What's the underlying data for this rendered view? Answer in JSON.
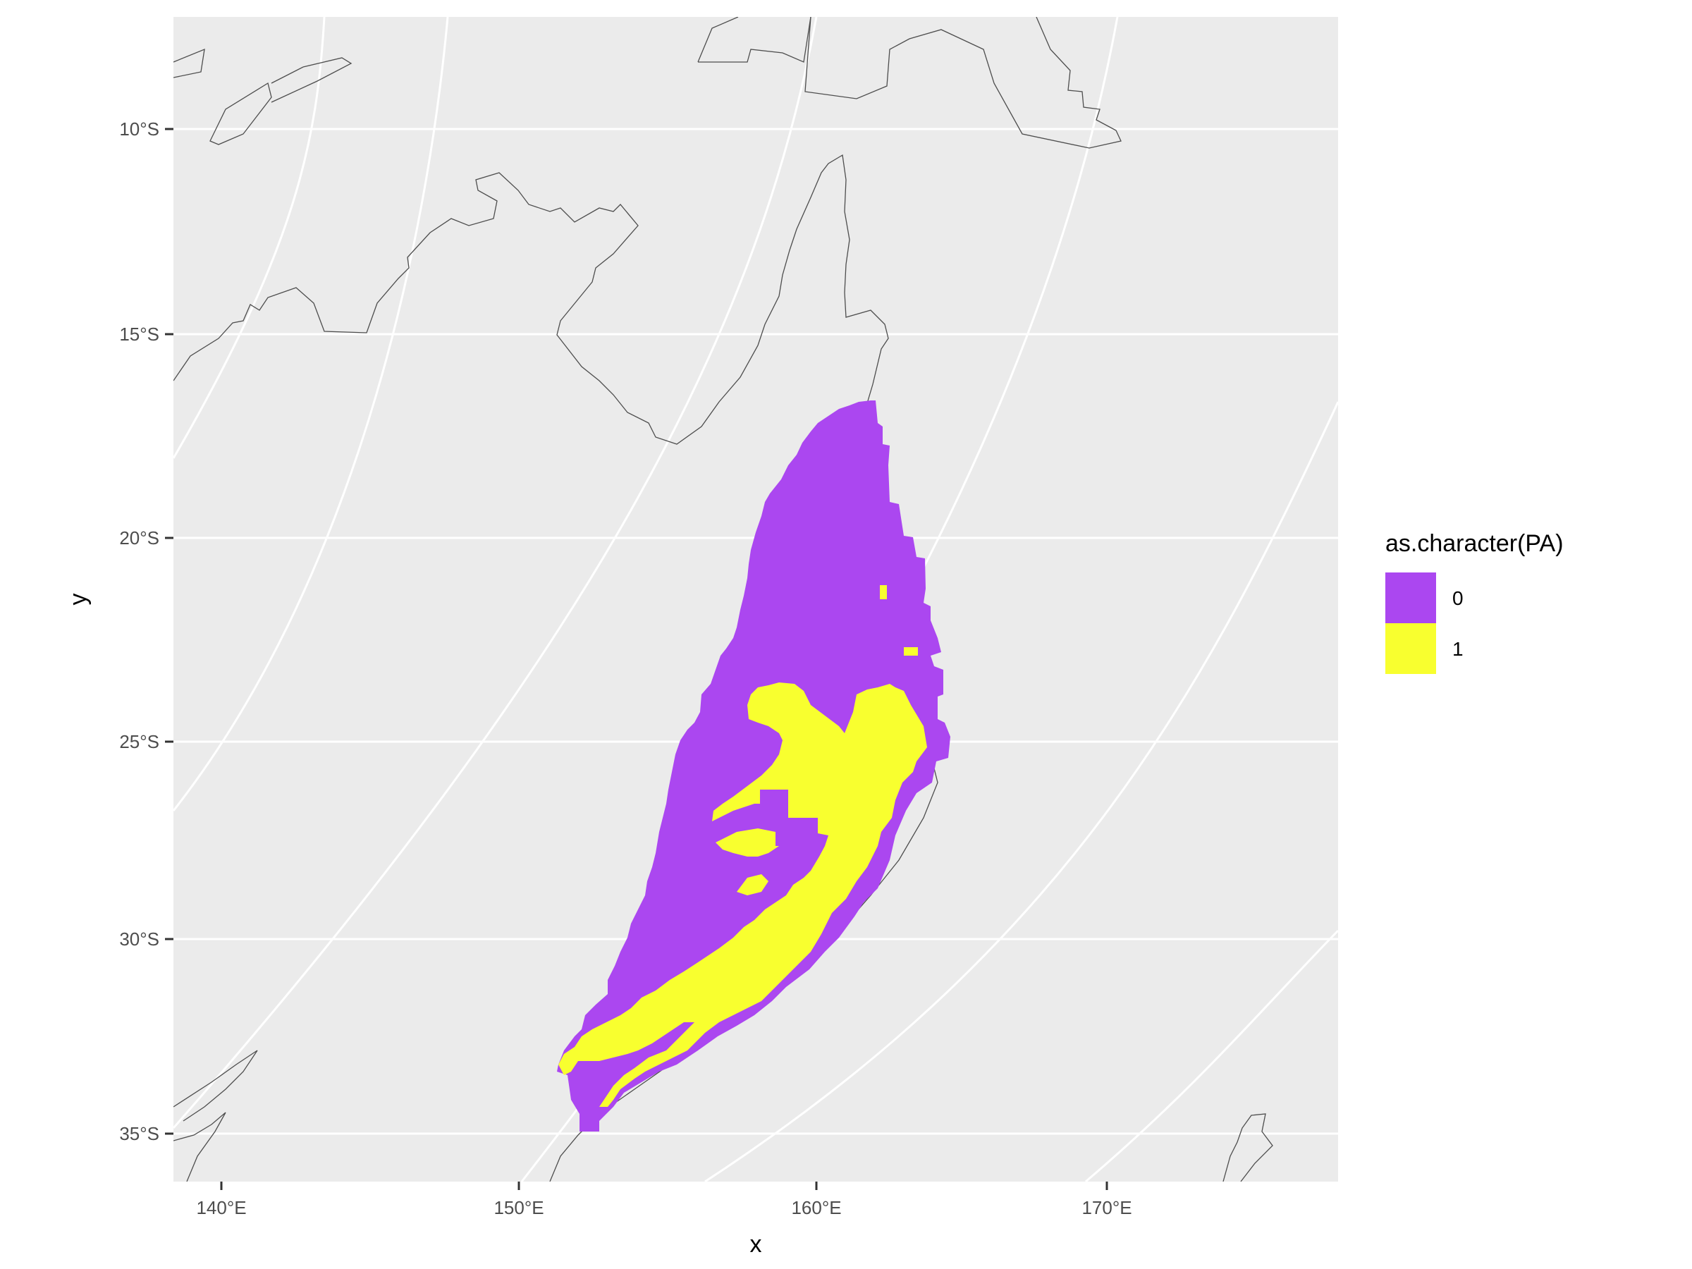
{
  "chart_data": {
    "type": "raster-map",
    "xlabel": "x",
    "ylabel": "y",
    "x_ticks": [
      "140°E",
      "150°E",
      "160°E",
      "170°E"
    ],
    "y_ticks": [
      "10°S",
      "15°S",
      "20°S",
      "25°S",
      "30°S",
      "35°S"
    ],
    "xlim": [
      138.4,
      177.5
    ],
    "ylim": [
      -36.0,
      -7.2
    ],
    "grid": true,
    "legend": {
      "title": "as.character(PA)",
      "position": "right",
      "items": [
        {
          "label": "0",
          "color": "#AB47F0"
        },
        {
          "label": "1",
          "color": "#F8FF2F"
        }
      ]
    },
    "regions": [
      {
        "value": "0",
        "color": "#AB47F0",
        "description_region": "absence cells"
      },
      {
        "value": "1",
        "color": "#F8FF2F",
        "description_region": "presence cells"
      }
    ]
  },
  "colors": {
    "panel_background": "#EBEBEB",
    "grid": "#FFFFFF",
    "coastline": "#4D4D4D",
    "absence": "#AB47F0",
    "presence": "#F8FF2F"
  }
}
